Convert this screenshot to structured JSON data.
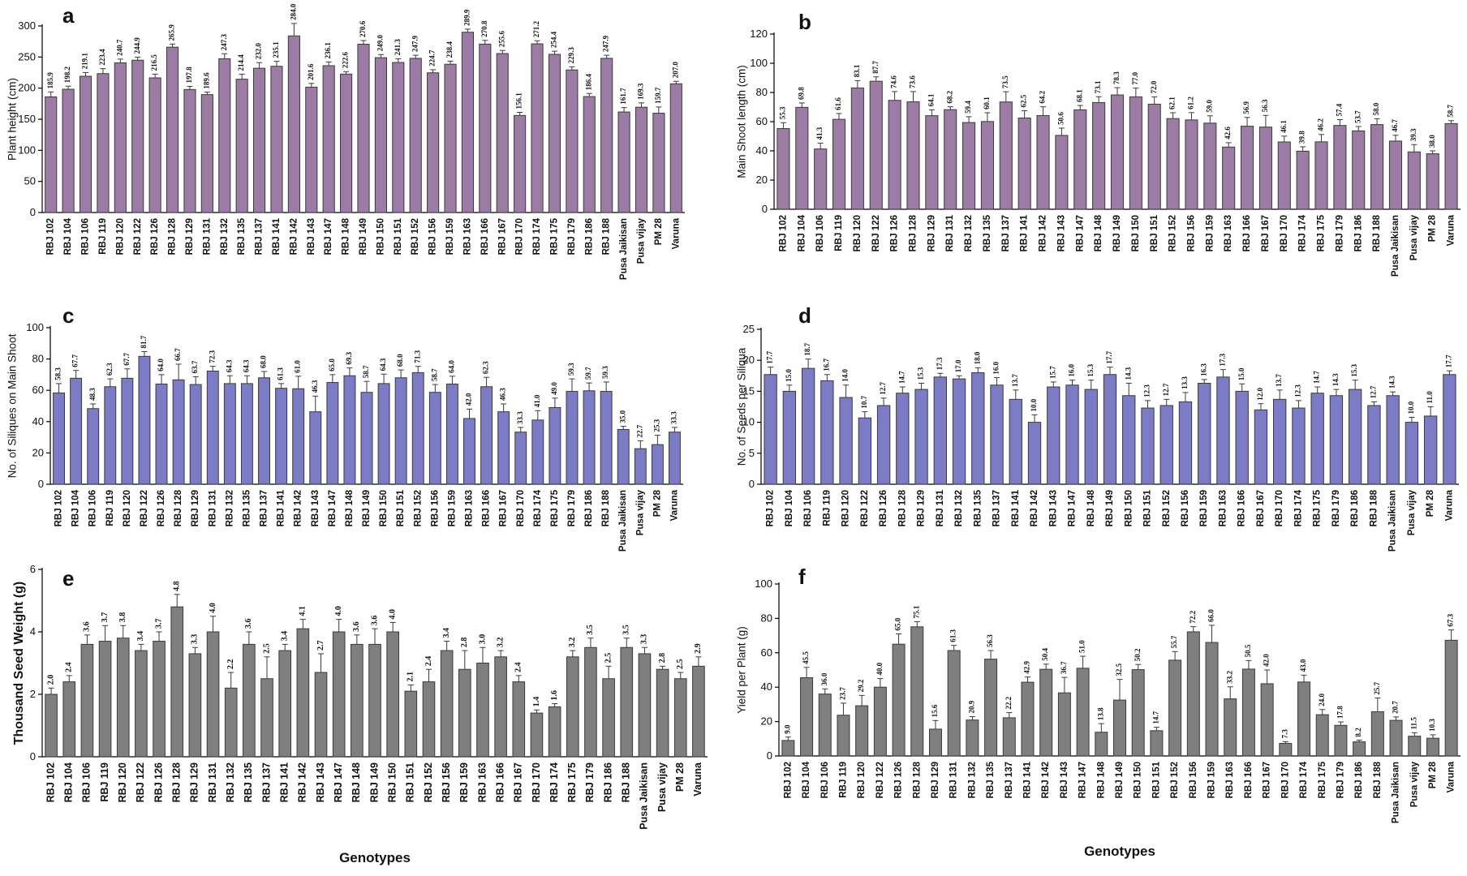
{
  "chart_data": [
    {
      "type": "bar",
      "panel_label": "a",
      "ylabel": "Plant height (cm)",
      "ylim": [
        0,
        300
      ],
      "yticks": [
        0,
        50,
        100,
        150,
        200,
        250,
        300
      ],
      "bar_color": "#9c7ba4",
      "categories": [
        "RBJ 102",
        "RBJ 104",
        "RBJ 106",
        "RBJ 119",
        "RBJ 120",
        "RBJ 122",
        "RBJ 126",
        "RBJ 128",
        "RBJ 129",
        "RBJ 131",
        "RBJ 132",
        "RBJ 135",
        "RBJ 137",
        "RBJ 141",
        "RBJ 142",
        "RBJ 143",
        "RBJ 147",
        "RBJ 148",
        "RBJ 149",
        "RBJ 150",
        "RBJ 151",
        "RBJ 152",
        "RBJ 156",
        "RBJ 159",
        "RBJ 163",
        "RBJ 166",
        "RBJ 167",
        "RBJ 170",
        "RBJ 174",
        "RBJ 175",
        "RBJ 179",
        "RBJ 186",
        "RBJ 188",
        "Pusa Jaikisan",
        "Pusa vijay",
        "PM 28",
        "Varuna"
      ],
      "values": [
        185.9,
        198.2,
        219.1,
        223.4,
        240.7,
        244.9,
        216.5,
        265.9,
        197.8,
        189.6,
        247.3,
        214.4,
        232.0,
        235.1,
        284.0,
        201.6,
        236.1,
        222.6,
        270.6,
        249.0,
        241.3,
        247.9,
        224.7,
        238.4,
        289.9,
        270.8,
        255.6,
        156.1,
        271.2,
        254.4,
        229.3,
        186.4,
        247.9,
        161.7,
        169.3,
        159.7,
        207.0
      ],
      "value_labels": [
        "185.9",
        "198.2",
        "219.1",
        "223.4",
        "240.7",
        "244.9",
        "216.5",
        "265.9",
        "197.8",
        "189.6",
        "247.3",
        "214.4",
        "232.0",
        "235.1",
        "284.0",
        "201.6",
        "236.1",
        "222.6",
        "270.6",
        "249.0",
        "241.3",
        "247.9",
        "224.7",
        "238.4",
        "289.9",
        "270.8",
        "255.6",
        "156.1",
        "271.2",
        "254.4",
        "229.3",
        "186.4",
        "247.9",
        "161.7",
        "169.3",
        "159.7",
        "207.0"
      ],
      "errors": [
        8,
        5,
        6,
        8,
        6,
        5,
        6,
        5,
        5,
        4,
        8,
        8,
        9,
        8,
        20,
        6,
        6,
        4,
        6,
        5,
        6,
        5,
        5,
        5,
        5,
        6,
        5,
        5,
        5,
        5,
        5,
        5,
        5,
        7,
        7,
        10,
        4
      ]
    },
    {
      "type": "bar",
      "panel_label": "b",
      "ylabel": "Main Shoot length (cm)",
      "ylim": [
        0,
        120
      ],
      "yticks": [
        0,
        20,
        40,
        60,
        80,
        100,
        120
      ],
      "bar_color": "#9c7ba4",
      "categories": [
        "RBJ 102",
        "RBJ 104",
        "RBJ 106",
        "RBJ 119",
        "RBJ 120",
        "RBJ 122",
        "RBJ 126",
        "RBJ 128",
        "RBJ 129",
        "RBJ 131",
        "RBJ 132",
        "RBJ 135",
        "RBJ 137",
        "RBJ 141",
        "RBJ 142",
        "RBJ 143",
        "RBJ 147",
        "RBJ 148",
        "RBJ 149",
        "RBJ 150",
        "RBJ 151",
        "RBJ 152",
        "RBJ 156",
        "RBJ 159",
        "RBJ 163",
        "RBJ 166",
        "RBJ 167",
        "RBJ 170",
        "RBJ 174",
        "RBJ 175",
        "RBJ 179",
        "RBJ 186",
        "RBJ 188",
        "Pusa Jaikisan",
        "Pusa vijay",
        "PM 28",
        "Varuna"
      ],
      "values": [
        55.3,
        69.8,
        41.3,
        61.6,
        83.1,
        87.7,
        74.6,
        73.6,
        64.1,
        68.2,
        59.4,
        60.1,
        73.5,
        62.5,
        64.2,
        50.6,
        68.1,
        73.1,
        78.3,
        77.0,
        72.0,
        62.1,
        61.2,
        59.0,
        42.6,
        56.9,
        56.3,
        46.1,
        39.8,
        46.2,
        57.4,
        53.7,
        58.0,
        46.7,
        39.3,
        38.0,
        58.7
      ],
      "value_labels": [
        "55.3",
        "69.8",
        "41.3",
        "61.6",
        "83.1",
        "87.7",
        "74.6",
        "73.6",
        "64.1",
        "68.2",
        "59.4",
        "60.1",
        "73.5",
        "62.5",
        "64.2",
        "50.6",
        "68.1",
        "73.1",
        "78.3",
        "77.0",
        "72.0",
        "62.1",
        "61.2",
        "59.0",
        "42.6",
        "56.9",
        "56.3",
        "46.1",
        "39.8",
        "46.2",
        "57.4",
        "53.7",
        "58.0",
        "46.7",
        "39.3",
        "38.0",
        "58.7"
      ],
      "errors": [
        4,
        3,
        4,
        4,
        5,
        3,
        6,
        7,
        4,
        2,
        4,
        6,
        7,
        5,
        6,
        5,
        3,
        4,
        5,
        6,
        5,
        4,
        5,
        5,
        3,
        6,
        8,
        4,
        3,
        5,
        4,
        3,
        4,
        4,
        5,
        2,
        2
      ]
    },
    {
      "type": "bar",
      "panel_label": "c",
      "ylabel": "No. of Siliques on Main Shoot",
      "ylim": [
        0,
        100
      ],
      "yticks": [
        0,
        20,
        40,
        60,
        80,
        100
      ],
      "bar_color": "#7b7bc6",
      "categories": [
        "RBJ 102",
        "RBJ 104",
        "RBJ 106",
        "RBJ 119",
        "RBJ 120",
        "RBJ 122",
        "RBJ 126",
        "RBJ 128",
        "RBJ 129",
        "RBJ 131",
        "RBJ 132",
        "RBJ 135",
        "RBJ 137",
        "RBJ 141",
        "RBJ 142",
        "RBJ 143",
        "RBJ 147",
        "RBJ 148",
        "RBJ 149",
        "RBJ 150",
        "RBJ 151",
        "RBJ 152",
        "RBJ 156",
        "RBJ 159",
        "RBJ 163",
        "RBJ 166",
        "RBJ 167",
        "RBJ 170",
        "RBJ 174",
        "RBJ 175",
        "RBJ 179",
        "RBJ 186",
        "RBJ 188",
        "Pusa Jaikisan",
        "Pusa vijay",
        "PM 28",
        "Varuna"
      ],
      "values": [
        58.3,
        67.7,
        48.3,
        62.3,
        67.7,
        81.7,
        64.0,
        66.7,
        63.7,
        72.3,
        64.3,
        64.3,
        68.0,
        61.3,
        61.0,
        46.3,
        65.0,
        69.3,
        58.7,
        64.3,
        68.0,
        71.3,
        58.7,
        64.0,
        42.0,
        62.3,
        46.3,
        33.3,
        41.0,
        49.0,
        59.3,
        59.7,
        59.3,
        35.0,
        22.7,
        25.3,
        33.3
      ],
      "value_labels": [
        "58.3",
        "67.7",
        "48.3",
        "62.3",
        "67.7",
        "81.7",
        "64.0",
        "66.7",
        "63.7",
        "72.3",
        "64.3",
        "64.3",
        "68.0",
        "61.3",
        "61.0",
        "46.3",
        "65.0",
        "69.3",
        "58.7",
        "64.3",
        "68.0",
        "71.3",
        "58.7",
        "64.0",
        "42.0",
        "62.3",
        "46.3",
        "33.3",
        "41.0",
        "49.0",
        "59.3",
        "59.7",
        "59.3",
        "35.0",
        "22.7",
        "25.3",
        "33.3"
      ],
      "errors": [
        6,
        5,
        3,
        5,
        6,
        3,
        6,
        10,
        5,
        3,
        5,
        5,
        4,
        3,
        8,
        10,
        5,
        5,
        7,
        6,
        5,
        4,
        5,
        5,
        6,
        6,
        5,
        3,
        6,
        6,
        8,
        5,
        6,
        2,
        5,
        6,
        3
      ]
    },
    {
      "type": "bar",
      "panel_label": "d",
      "ylabel": "No. of Seeds per Siliqua",
      "ylim": [
        0,
        25
      ],
      "yticks": [
        0,
        5,
        10,
        15,
        20,
        25
      ],
      "bar_color": "#7b7bc6",
      "categories": [
        "RBJ 102",
        "RBJ 104",
        "RBJ 106",
        "RBJ 119",
        "RBJ 120",
        "RBJ 122",
        "RBJ 126",
        "RBJ 128",
        "RBJ 129",
        "RBJ 131",
        "RBJ 132",
        "RBJ 135",
        "RBJ 137",
        "RBJ 141",
        "RBJ 142",
        "RBJ 143",
        "RBJ 147",
        "RBJ 148",
        "RBJ 149",
        "RBJ 150",
        "RBJ 151",
        "RBJ 152",
        "RBJ 156",
        "RBJ 159",
        "RBJ 163",
        "RBJ 166",
        "RBJ 167",
        "RBJ 170",
        "RBJ 174",
        "RBJ 175",
        "RBJ 179",
        "RBJ 186",
        "RBJ 188",
        "Pusa Jaikisan",
        "Pusa vijay",
        "PM 28",
        "Varuna"
      ],
      "values": [
        17.7,
        15.0,
        18.7,
        16.7,
        14.0,
        10.7,
        12.7,
        14.7,
        15.3,
        17.3,
        17.0,
        18.0,
        16.0,
        13.7,
        10.0,
        15.7,
        16.0,
        15.3,
        17.7,
        14.3,
        12.3,
        12.7,
        13.3,
        16.3,
        17.3,
        15.0,
        12.0,
        13.7,
        12.3,
        14.7,
        14.3,
        15.3,
        12.7,
        14.3,
        10.0,
        11.0,
        17.7
      ],
      "value_labels": [
        "17.7",
        "15.0",
        "18.7",
        "16.7",
        "14.0",
        "10.7",
        "12.7",
        "14.7",
        "15.3",
        "17.3",
        "17.0",
        "18.0",
        "16.0",
        "13.7",
        "10.0",
        "15.7",
        "16.0",
        "15.3",
        "17.7",
        "14.3",
        "12.3",
        "12.7",
        "13.3",
        "16.3",
        "17.3",
        "15.0",
        "12.0",
        "13.7",
        "12.3",
        "14.7",
        "14.3",
        "15.3",
        "12.7",
        "14.3",
        "10.0",
        "11.0",
        "17.7"
      ],
      "errors": [
        1.2,
        1.0,
        1.5,
        1.0,
        2.0,
        1.0,
        1.2,
        1.0,
        1.0,
        0.6,
        0.5,
        0.8,
        1.2,
        1.5,
        1.2,
        0.8,
        0.8,
        1.5,
        1.2,
        2.0,
        1.2,
        1.0,
        1.5,
        0.6,
        1.2,
        1.2,
        1.0,
        1.5,
        1.2,
        1.0,
        1.0,
        1.5,
        0.6,
        0.6,
        0.8,
        1.5,
        0.6
      ]
    },
    {
      "type": "bar",
      "panel_label": "e",
      "ylabel": "Thousand Seed Weight (g)",
      "xlabel": "Genotypes",
      "ylim": [
        0,
        6
      ],
      "yticks": [
        0,
        2,
        4,
        6
      ],
      "bar_color": "#7f7f7f",
      "categories": [
        "RBJ 102",
        "RBJ 104",
        "RBJ 106",
        "RBJ 119",
        "RBJ 120",
        "RBJ 122",
        "RBJ 126",
        "RBJ 128",
        "RBJ 129",
        "RBJ 131",
        "RBJ 132",
        "RBJ 135",
        "RBJ 137",
        "RBJ 141",
        "RBJ 142",
        "RBJ 143",
        "RBJ 147",
        "RBJ 148",
        "RBJ 149",
        "RBJ 150",
        "RBJ 151",
        "RBJ 152",
        "RBJ 156",
        "RBJ 159",
        "RBJ 163",
        "RBJ 166",
        "RBJ 167",
        "RBJ 170",
        "RBJ 174",
        "RBJ 175",
        "RBJ 179",
        "RBJ 186",
        "RBJ 188",
        "Pusa Jaikisan",
        "Pusa vijay",
        "PM 28",
        "Varuna"
      ],
      "values": [
        2.0,
        2.4,
        3.6,
        3.7,
        3.8,
        3.4,
        3.7,
        4.8,
        3.3,
        4.0,
        2.2,
        3.6,
        2.5,
        3.4,
        4.1,
        2.7,
        4.0,
        3.6,
        3.6,
        4.0,
        2.1,
        2.4,
        3.4,
        2.8,
        3.0,
        3.2,
        2.4,
        1.4,
        1.6,
        3.2,
        3.5,
        2.5,
        3.5,
        3.3,
        2.8,
        2.5,
        2.9
      ],
      "value_labels": [
        "2.0",
        "2.4",
        "3.6",
        "3.7",
        "3.8",
        "3.4",
        "3.7",
        "4.8",
        "3.3",
        "4.0",
        "2.2",
        "3.6",
        "2.5",
        "3.4",
        "4.1",
        "2.7",
        "4.0",
        "3.6",
        "3.6",
        "4.0",
        "2.1",
        "2.4",
        "3.4",
        "2.8",
        "3.0",
        "3.2",
        "2.4",
        "1.4",
        "1.6",
        "3.2",
        "3.5",
        "2.5",
        "3.5",
        "3.3",
        "2.8",
        "2.5",
        "2.9"
      ],
      "errors": [
        0.2,
        0.2,
        0.3,
        0.5,
        0.4,
        0.2,
        0.3,
        0.4,
        0.2,
        0.5,
        0.5,
        0.4,
        0.7,
        0.2,
        0.3,
        0.6,
        0.4,
        0.3,
        0.5,
        0.3,
        0.2,
        0.4,
        0.3,
        0.6,
        0.5,
        0.2,
        0.2,
        0.1,
        0.1,
        0.2,
        0.3,
        0.4,
        0.3,
        0.2,
        0.1,
        0.2,
        0.3
      ]
    },
    {
      "type": "bar",
      "panel_label": "f",
      "ylabel": "Yield per Plant (g)",
      "xlabel": "Genotypes",
      "ylim": [
        0,
        100
      ],
      "yticks": [
        0,
        20,
        40,
        60,
        80,
        100
      ],
      "bar_color": "#7f7f7f",
      "categories": [
        "RBJ 102",
        "RBJ 104",
        "RBJ 106",
        "RBJ 119",
        "RBJ 120",
        "RBJ 122",
        "RBJ 126",
        "RBJ 128",
        "RBJ 129",
        "RBJ 131",
        "RBJ 132",
        "RBJ 135",
        "RBJ 137",
        "RBJ 141",
        "RBJ 142",
        "RBJ 143",
        "RBJ 147",
        "RBJ 148",
        "RBJ 149",
        "RBJ 150",
        "RBJ 151",
        "RBJ 152",
        "RBJ 156",
        "RBJ 159",
        "RBJ 163",
        "RBJ 166",
        "RBJ 167",
        "RBJ 170",
        "RBJ 174",
        "RBJ 175",
        "RBJ 179",
        "RBJ 186",
        "RBJ 188",
        "Pusa Jaikisan",
        "Pusa vijay",
        "PM 28",
        "Varuna"
      ],
      "values": [
        9.0,
        45.5,
        36.0,
        23.7,
        29.2,
        40.0,
        65.0,
        75.1,
        15.6,
        61.3,
        20.9,
        56.3,
        22.2,
        42.9,
        50.4,
        36.7,
        51.0,
        13.8,
        32.5,
        50.2,
        14.7,
        55.7,
        72.2,
        66.0,
        33.2,
        50.5,
        42.0,
        7.3,
        43.0,
        24.0,
        17.8,
        8.2,
        25.7,
        20.7,
        11.5,
        10.3,
        67.3
      ],
      "value_labels": [
        "9.0",
        "45.5",
        "36.0",
        "23.7",
        "29.2",
        "40.0",
        "65.0",
        "75.1",
        "15.6",
        "61.3",
        "20.9",
        "56.3",
        "22.2",
        "42.9",
        "50.4",
        "36.7",
        "51.0",
        "13.8",
        "32.5",
        "50.2",
        "14.7",
        "55.7",
        "72.2",
        "66.0",
        "33.2",
        "50.5",
        "42.0",
        "7.3",
        "43.0",
        "24.0",
        "17.8",
        "8.2",
        "25.7",
        "20.7",
        "11.5",
        "10.3",
        "67.3"
      ],
      "errors": [
        2,
        6,
        3,
        7,
        6,
        5,
        6,
        3,
        5,
        3,
        2,
        5,
        3,
        3,
        3,
        9,
        7,
        5,
        12,
        3,
        2,
        5,
        3,
        10,
        7,
        5,
        8,
        1,
        4,
        3,
        2,
        1,
        8,
        2,
        2,
        2,
        6
      ]
    }
  ]
}
